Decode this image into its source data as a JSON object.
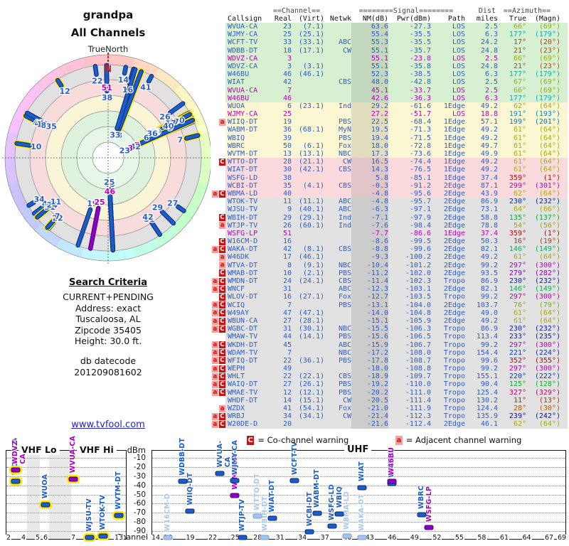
{
  "header": {
    "title": "grandpa",
    "subtitle": "All Channels",
    "compass_label": "TrueNorth",
    "north_letter": "N"
  },
  "search_criteria": {
    "heading": "Search Criteria",
    "lines": [
      "CURRENT+PENDING",
      "Address: exact",
      "Tuscaloosa, AL",
      "Zipcode 35405",
      "Height: 30.0 ft."
    ],
    "db_label": "db datecode",
    "db_value": "201209081602"
  },
  "link": {
    "label": "www.tvfool.com"
  },
  "table": {
    "group_headers": {
      "channel": "==Channel==",
      "signal": "========Signal========",
      "dist": "Dist",
      "azimuth": "==Azimuth=="
    },
    "columns": [
      "Callsign",
      "Real",
      "(Virt)",
      "Netwk",
      "NM(dB)",
      "Pwr(dBm)",
      "Path",
      "miles",
      "True",
      "(Magn)"
    ]
  },
  "legend": {
    "co": {
      "symbol": "C",
      "label": "= Co-channel warning"
    },
    "adj": {
      "symbol": "a",
      "label": "= Adjacent channel warning"
    }
  },
  "chart_data": {
    "type": "table",
    "title": "All Channels",
    "station_fields": [
      "callsign",
      "real_ch",
      "virtual_ch",
      "network",
      "nm_db",
      "pwr_dbm",
      "path",
      "dist_miles",
      "azimuth_true_deg",
      "azimuth_magnetic_deg",
      "analog",
      "signal_tier",
      "warnings"
    ],
    "stations": [
      [
        "WVUA-CA",
        23,
        "(7.1)",
        "",
        63.6,
        -27.3,
        "LOS",
        2.5,
        66,
        69,
        false,
        "green",
        ""
      ],
      [
        "WJMY-CA",
        25,
        "(25.1)",
        "",
        55.4,
        -35.5,
        "LOS",
        6.3,
        177,
        179,
        false,
        "green",
        ""
      ],
      [
        "WCFT-TV",
        33,
        "(33.1)",
        "ABC",
        55.3,
        -35.5,
        "LOS",
        24.2,
        17,
        20,
        false,
        "green",
        ""
      ],
      [
        "WDBB-DT",
        18,
        "(17.1)",
        "CW",
        55.1,
        -35.7,
        "LOS",
        24.8,
        21,
        23,
        false,
        "green",
        ""
      ],
      [
        "WDVZ-CA",
        3,
        "",
        "",
        55.1,
        -23.8,
        "LOS",
        2.5,
        66,
        69,
        true,
        "green",
        ""
      ],
      [
        "WDVZ-CA",
        3,
        "(3.1)",
        "",
        55.1,
        -35.8,
        "LOS",
        24.8,
        21,
        23,
        false,
        "green",
        ""
      ],
      [
        "W46BU",
        46,
        "(46.1)",
        "",
        52.3,
        -38.5,
        "LOS",
        6.3,
        177,
        179,
        false,
        "green",
        ""
      ],
      [
        "WIAT",
        42,
        "",
        "CBS",
        48.0,
        -42.8,
        "LOS",
        2.5,
        67,
        69,
        false,
        "green",
        ""
      ],
      [
        "WVUA-CA",
        7,
        "",
        "",
        45.1,
        -33.7,
        "LOS",
        2.5,
        66,
        69,
        true,
        "green",
        ""
      ],
      [
        "W46BU",
        46,
        "",
        "",
        42.6,
        -36.3,
        "LOS",
        6.3,
        177,
        179,
        true,
        "green",
        ""
      ],
      [
        "WUOA",
        6,
        "(23.1)",
        "Ind",
        29.2,
        -61.6,
        "1Edge",
        49.2,
        62,
        64,
        false,
        "yellow",
        ""
      ],
      [
        "WJMY-CA",
        25,
        "",
        "",
        27.2,
        -51.7,
        "LOS",
        18.8,
        191,
        193,
        true,
        "yellow",
        ""
      ],
      [
        "WIIQ-DT",
        19,
        "",
        "PBS",
        22.5,
        -68.4,
        "1Edge",
        57.1,
        199,
        201,
        false,
        "yellow",
        "a"
      ],
      [
        "WABM-DT",
        36,
        "(68.1)",
        "MyN",
        19.5,
        -71.3,
        "1Edge",
        49.2,
        61,
        64,
        false,
        "yellow",
        ""
      ],
      [
        "WBIQ",
        39,
        "",
        "PBS",
        19.4,
        -71.5,
        "1Edge",
        49.2,
        61,
        64,
        false,
        "yellow",
        ""
      ],
      [
        "WBRC",
        50,
        "(6.1)",
        "Fox",
        18.0,
        -72.8,
        "1Edge",
        49.7,
        61,
        64,
        false,
        "yellow",
        ""
      ],
      [
        "WVTM-DT",
        13,
        "(13.1)",
        "NBC",
        17.3,
        -73.6,
        "1Edge",
        49.9,
        61,
        64,
        false,
        "yellow",
        ""
      ],
      [
        "WTTO-DT",
        28,
        "(21.1)",
        "CW",
        16.5,
        -74.4,
        "1Edge",
        49.2,
        61,
        64,
        false,
        "pink",
        "C"
      ],
      [
        "WIAT-DT",
        30,
        "(42.1)",
        "CBS",
        14.3,
        -76.5,
        "1Edge",
        49.2,
        61,
        64,
        false,
        "pink",
        ""
      ],
      [
        "WSFG-LD",
        38,
        "",
        "",
        5.8,
        -85.1,
        "1Edge",
        37.4,
        359,
        1,
        false,
        "pink",
        ""
      ],
      [
        "WCBI-DT",
        35,
        "(4.1)",
        "CBS",
        -0.3,
        -91.2,
        "2Edge",
        87.1,
        299,
        301,
        false,
        "pink",
        ""
      ],
      [
        "WBMA-LD",
        40,
        "",
        "",
        -4.8,
        -95.6,
        "2Edge",
        43.9,
        62,
        64,
        false,
        "pink",
        "aC"
      ],
      [
        "WTOK-TV",
        11,
        "(11.1)",
        "ABC",
        -4.8,
        -95.7,
        "2Edge",
        86.9,
        230,
        232,
        false,
        "gray",
        ""
      ],
      [
        "WJSU-TV",
        9,
        "(40.1)",
        "ABC",
        -6.3,
        -97.1,
        "2Edge",
        73.1,
        64,
        66,
        false,
        "gray",
        ""
      ],
      [
        "WBIH-DT",
        29,
        "(29.1)",
        "Ind",
        -7.1,
        -97.9,
        "2Edge",
        58.8,
        135,
        137,
        false,
        "gray",
        "C"
      ],
      [
        "WTJP-TV",
        26,
        "(60.1)",
        "Ind",
        -7.6,
        -98.4,
        "2Edge",
        78.8,
        54,
        56,
        false,
        "gray",
        "a"
      ],
      [
        "WSFG-LP",
        51,
        "",
        "",
        -7.7,
        -86.6,
        "1Edge",
        37.4,
        359,
        1,
        true,
        "gray",
        ""
      ],
      [
        "W16CM-D",
        16,
        "",
        "",
        -8.6,
        -99.5,
        "2Edge",
        50.3,
        16,
        19,
        false,
        "gray",
        "C"
      ],
      [
        "WAKA-DT",
        42,
        "(8.1)",
        "CBS",
        -8.8,
        -99.6,
        "2Edge",
        82.1,
        146,
        149,
        false,
        "gray",
        "aC"
      ],
      [
        "W46DK",
        17,
        "(46.1)",
        "",
        -9.3,
        -100.2,
        "2Edge",
        49.2,
        61,
        64,
        false,
        "gray",
        "a"
      ],
      [
        "WTVA-DT",
        8,
        "(9.1)",
        "NBC",
        -10.4,
        -101.2,
        "2Edge",
        99.2,
        297,
        300,
        false,
        "gray",
        "a"
      ],
      [
        "WMAB-DT",
        10,
        "(2.1)",
        "PBS",
        -11.2,
        -102.0,
        "2Edge",
        93.5,
        279,
        282,
        false,
        "gray",
        "C"
      ],
      [
        "WMDN-DT",
        24,
        "(24.1)",
        "CBS",
        -11.4,
        -102.3,
        "Tropo",
        86.9,
        230,
        232,
        false,
        "gray",
        "aC"
      ],
      [
        "WNCF",
        31,
        "",
        "ABC",
        -12.3,
        -103.1,
        "2Edge",
        82.1,
        146,
        149,
        false,
        "gray",
        "aC"
      ],
      [
        "WLOV-DT",
        16,
        "(27.1)",
        "Fox",
        -12.7,
        -103.5,
        "Tropo",
        99.2,
        297,
        300,
        false,
        "gray",
        "C"
      ],
      [
        "WCIQ",
        7,
        "",
        "PBS",
        -13.1,
        -104.0,
        "2Edge",
        103.7,
        76,
        79,
        false,
        "gray",
        "aC"
      ],
      [
        "W49AY",
        47,
        "(47.1)",
        "",
        -14.0,
        -104.8,
        "2Edge",
        49.0,
        61,
        64,
        false,
        "gray",
        "aC"
      ],
      [
        "WBUN-CA",
        27,
        "(28.1)",
        "",
        -15.1,
        -105.9,
        "2Edge",
        49.2,
        61,
        64,
        false,
        "gray",
        "aC"
      ],
      [
        "WGBC-DT",
        31,
        "(30.1)",
        "NBC",
        -15.5,
        -106.3,
        "Tropo",
        86.9,
        230,
        232,
        false,
        "gray",
        "aC"
      ],
      [
        "WMAW-TV",
        44,
        "(14.1)",
        "PBS",
        -15.6,
        -106.5,
        "Tropo",
        113.4,
        233,
        235,
        false,
        "gray",
        ""
      ],
      [
        "WKDH-DT",
        45,
        "",
        "ABC",
        -15.9,
        -106.7,
        "Tropo",
        99.2,
        297,
        300,
        false,
        "gray",
        "aC"
      ],
      [
        "WDAM-TV",
        7,
        "",
        "NBC",
        -17.2,
        -108.0,
        "Tropo",
        154.4,
        221,
        224,
        false,
        "gray",
        "aC"
      ],
      [
        "WFIQ-DT",
        22,
        "(36.1)",
        "PBS",
        -17.8,
        -108.7,
        "Tropo",
        99.6,
        352,
        355,
        false,
        "gray",
        "aC"
      ],
      [
        "WEPH",
        49,
        "",
        "",
        -18.0,
        -108.8,
        "Tropo",
        99.2,
        297,
        300,
        false,
        "gray",
        "aC"
      ],
      [
        "WHLT",
        22,
        "(22.1)",
        "CBS",
        -18.9,
        -109.7,
        "Tropo",
        155.1,
        220,
        222,
        false,
        "gray",
        "aC"
      ],
      [
        "WAIQ-DT",
        27,
        "(26.1)",
        "PBS",
        -19.2,
        -110.0,
        "Tropo",
        90.4,
        125,
        128,
        false,
        "gray",
        "aC"
      ],
      [
        "WMAE-TV",
        12,
        "(12.1)",
        "PBS",
        -20.2,
        -111.0,
        "Tropo",
        125.4,
        327,
        329,
        false,
        "gray",
        "aC"
      ],
      [
        "WHDF-DT",
        14,
        "(15.1)",
        "CW",
        -20.5,
        -111.4,
        "Tropo",
        130.2,
        11,
        13,
        false,
        "gray",
        ""
      ],
      [
        "WZDX",
        41,
        "(54.1)",
        "Fox",
        -21.0,
        -111.9,
        "Tropo",
        124.4,
        28,
        30,
        false,
        "gray",
        "a"
      ],
      [
        "WRBJ",
        34,
        "(34.1)",
        "CW",
        -21.4,
        -112.3,
        "Tropo",
        135.9,
        239,
        242,
        false,
        "gray",
        "aC"
      ],
      [
        "W20DE-D",
        20,
        "",
        "",
        -21.6,
        -112.4,
        "2Edge",
        46.1,
        62,
        64,
        false,
        "gray",
        "aC"
      ]
    ],
    "radar": {
      "north_label": "N",
      "compass_label": "TrueNorth"
    },
    "signal_plot": {
      "type": "scatter",
      "ylabel": "dBm",
      "xlabel": "Channel",
      "ylim": [
        -5,
        -97
      ],
      "dbm_ticks": [
        -10,
        -20,
        -30,
        -40,
        -50,
        -60,
        -70,
        -80,
        -90
      ],
      "vhf_lo_label": "VHF Lo",
      "vhf_hi_label": "VHF Hi",
      "uhf_label": "UHF",
      "vhf_ticks": [
        2,
        4,
        5,
        6,
        7,
        9,
        11,
        13
      ],
      "uhf_ticks": [
        14,
        16,
        19,
        22,
        25,
        28,
        31,
        34,
        37,
        40,
        43,
        46,
        49,
        52,
        55,
        58,
        61,
        64,
        67,
        69
      ]
    }
  },
  "colors": {
    "digital_text": "#2d5cc8",
    "analog_text": "#bb00bb",
    "digital_bar": "#1a5cc8",
    "digital_bar_border": "#0a2a70",
    "analog_bar": "#8a00c4",
    "analog_bar_border": "#4d0070",
    "faded_bar": "#a3c2ec",
    "faded_bar_border": "#7a9fd4",
    "faded_text": "#a8c6ee",
    "ring_highlight": "#ffe800",
    "warn_co_bg": "#cc1111",
    "warn_adj_bg": "#f5a0a0",
    "tier_green": "#d7f0d2",
    "tier_yellow": "#fbf7d3",
    "tier_pink": "#fadadd",
    "tier_gray": "#e2e2e2",
    "link": "#2222cc",
    "north": "#cc2222"
  }
}
